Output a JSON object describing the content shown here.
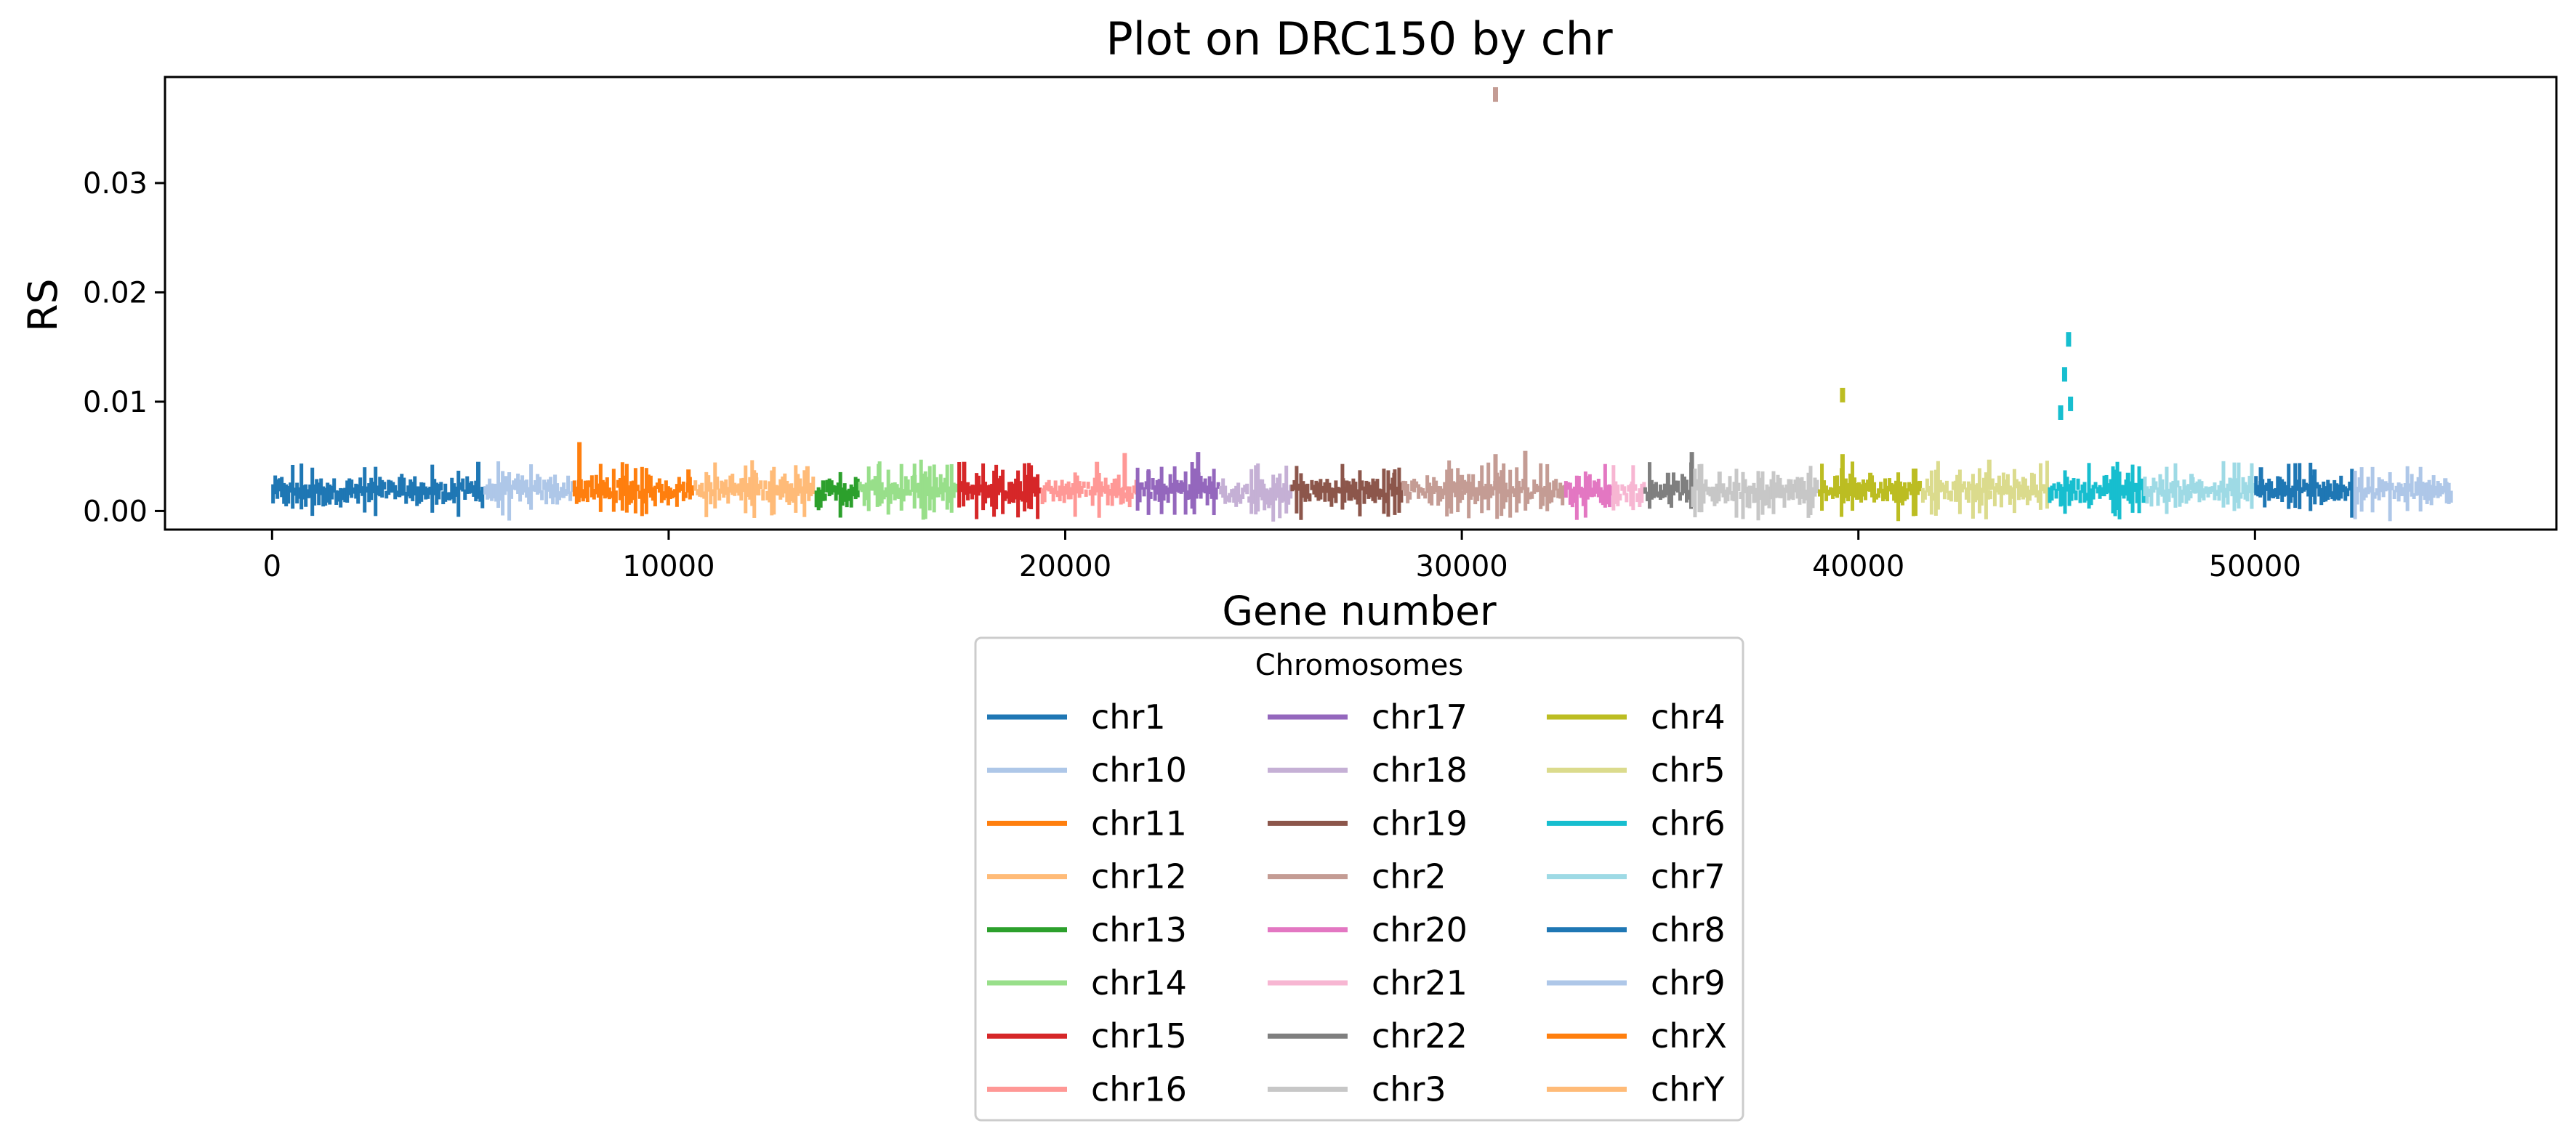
{
  "chart_data": {
    "type": "scatter",
    "title": "Plot on DRC150 by chr",
    "xlabel": "Gene number",
    "ylabel": "RS",
    "xlim": [
      -2700,
      57600
    ],
    "ylim": [
      -0.0017,
      0.0397
    ],
    "xticks": [
      0,
      10000,
      20000,
      30000,
      40000,
      50000
    ],
    "xtick_labels": [
      "0",
      "10000",
      "20000",
      "30000",
      "40000",
      "50000"
    ],
    "yticks": [
      0.0,
      0.01,
      0.02,
      0.03
    ],
    "ytick_labels": [
      "0.00",
      "0.01",
      "0.02",
      "0.03"
    ],
    "legend": {
      "title": "Chromosomes",
      "placement": "below-center",
      "columns": 3
    },
    "series": [
      {
        "name": "chr1",
        "color": "#1f77b4",
        "x_range": [
          0,
          5350
        ],
        "base": 0.0018,
        "peaks": [
          [
            5200,
            0.0045
          ],
          [
            200,
            0.003
          ]
        ]
      },
      {
        "name": "chr10",
        "color": "#aec7e8",
        "x_range": [
          5350,
          7600
        ],
        "base": 0.0019,
        "peaks": [
          [
            5900,
            0.0032
          ]
        ]
      },
      {
        "name": "chr11",
        "color": "#ff7f0e",
        "x_range": [
          7600,
          10650
        ],
        "base": 0.0019,
        "peaks": [
          [
            7750,
            0.0063
          ],
          [
            10500,
            0.0038
          ]
        ]
      },
      {
        "name": "chr12",
        "color": "#ffbb78",
        "x_range": [
          10650,
          13700
        ],
        "base": 0.002,
        "peaks": [
          [
            13500,
            0.0041
          ],
          [
            12200,
            0.0035
          ]
        ]
      },
      {
        "name": "chr13",
        "color": "#2ca02c",
        "x_range": [
          13700,
          14800
        ],
        "base": 0.0017,
        "peaks": [
          [
            13900,
            0.0028
          ]
        ]
      },
      {
        "name": "chr14",
        "color": "#98df8a",
        "x_range": [
          14800,
          17300
        ],
        "base": 0.0019,
        "peaks": [
          [
            15300,
            0.0043
          ],
          [
            16200,
            0.0033
          ]
        ]
      },
      {
        "name": "chr15",
        "color": "#d62728",
        "x_range": [
          17300,
          19400
        ],
        "base": 0.0019,
        "peaks": [
          [
            17450,
            0.0045
          ],
          [
            19000,
            0.0033
          ]
        ]
      },
      {
        "name": "chr16",
        "color": "#ff9896",
        "x_range": [
          19400,
          21800
        ],
        "base": 0.0019,
        "peaks": [
          [
            21500,
            0.0053
          ],
          [
            20800,
            0.0045
          ]
        ]
      },
      {
        "name": "chr17",
        "color": "#9467bd",
        "x_range": [
          21800,
          23900
        ],
        "base": 0.002,
        "peaks": [
          [
            23350,
            0.0054
          ],
          [
            22100,
            0.0037
          ]
        ]
      },
      {
        "name": "chr18",
        "color": "#c5b0d5",
        "x_range": [
          23900,
          25700
        ],
        "base": 0.0016,
        "peaks": [
          [
            25000,
            0.0025
          ]
        ]
      },
      {
        "name": "chr19",
        "color": "#8c564b",
        "x_range": [
          25700,
          28500
        ],
        "base": 0.0018,
        "peaks": [
          [
            28300,
            0.0035
          ],
          [
            27000,
            0.003
          ]
        ]
      },
      {
        "name": "chr2",
        "color": "#c49c94",
        "x_range": [
          28500,
          32600
        ],
        "base": 0.0019,
        "peaks": [
          [
            30850,
            0.0381
          ],
          [
            30850,
            0.0052
          ],
          [
            31600,
            0.0055
          ],
          [
            30000,
            0.0033
          ]
        ]
      },
      {
        "name": "chr20",
        "color": "#e377c2",
        "x_range": [
          32600,
          33800
        ],
        "base": 0.0018,
        "peaks": [
          [
            33200,
            0.0032
          ]
        ]
      },
      {
        "name": "chr21",
        "color": "#f7b6d2",
        "x_range": [
          33800,
          34600
        ],
        "base": 0.0018,
        "peaks": [
          [
            34300,
            0.0027
          ]
        ]
      },
      {
        "name": "chr22",
        "color": "#7f7f7f",
        "x_range": [
          34600,
          35800
        ],
        "base": 0.0019,
        "peaks": [
          [
            35800,
            0.0054
          ],
          [
            35200,
            0.0035
          ]
        ]
      },
      {
        "name": "chr3",
        "color": "#c7c7c7",
        "x_range": [
          35800,
          39000
        ],
        "base": 0.0018,
        "peaks": [
          [
            36500,
            0.0036
          ],
          [
            38500,
            0.003
          ]
        ]
      },
      {
        "name": "chr4",
        "color": "#bcbd22",
        "x_range": [
          39000,
          41600
        ],
        "base": 0.0019,
        "peaks": [
          [
            39600,
            0.0106
          ],
          [
            39600,
            0.0052
          ],
          [
            40300,
            0.0035
          ]
        ]
      },
      {
        "name": "chr5",
        "color": "#dbdb8d",
        "x_range": [
          41600,
          44800
        ],
        "base": 0.0019,
        "peaks": [
          [
            43300,
            0.0047
          ],
          [
            42500,
            0.0033
          ]
        ]
      },
      {
        "name": "chr6",
        "color": "#17becf",
        "x_range": [
          44800,
          47200
        ],
        "base": 0.0019,
        "peaks": [
          [
            45300,
            0.0157
          ],
          [
            45200,
            0.0125
          ],
          [
            45350,
            0.0098
          ],
          [
            45100,
            0.009
          ],
          [
            46800,
            0.0035
          ]
        ]
      },
      {
        "name": "chr7",
        "color": "#9edae5",
        "x_range": [
          47200,
          50000
        ],
        "base": 0.0019,
        "peaks": [
          [
            48400,
            0.0034
          ],
          [
            49500,
            0.003
          ]
        ]
      },
      {
        "name": "chr8",
        "color": "#1f77b4",
        "x_range": [
          50000,
          52500
        ],
        "base": 0.0019,
        "peaks": [
          [
            50150,
            0.004
          ],
          [
            51500,
            0.0038
          ]
        ]
      },
      {
        "name": "chr9",
        "color": "#aec7e8",
        "x_range": [
          52500,
          55000
        ],
        "base": 0.0018,
        "peaks": [
          [
            54800,
            0.003
          ],
          [
            53200,
            0.0029
          ]
        ]
      },
      {
        "name": "chrX",
        "color": "#ff7f0e"
      },
      {
        "name": "chrY",
        "color": "#ffbb78"
      }
    ]
  }
}
